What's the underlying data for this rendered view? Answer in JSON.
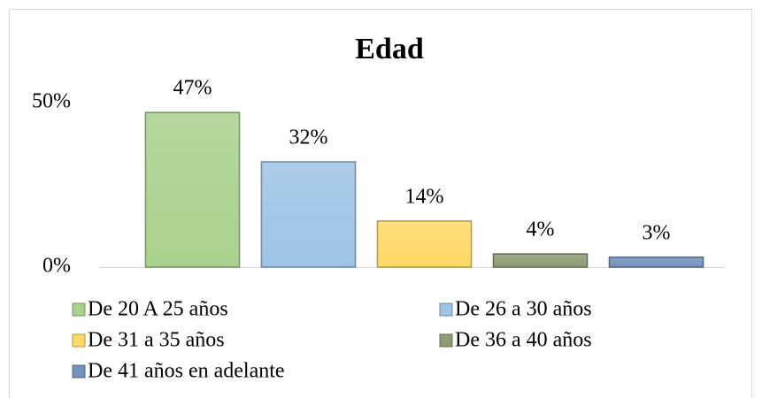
{
  "chart_data": {
    "type": "bar",
    "title": "Edad",
    "series": [
      {
        "name": "De 20 A 25 años",
        "color": "#a9d18e",
        "values": [
          47
        ],
        "value_labels": [
          "47%"
        ]
      },
      {
        "name": "De 26 a 30 años",
        "color": "#9dc3e6",
        "values": [
          32
        ],
        "value_labels": [
          "32%"
        ]
      },
      {
        "name": "De 31 a 35 años",
        "color": "#ffd966",
        "values": [
          14
        ],
        "value_labels": [
          "14%"
        ]
      },
      {
        "name": "De 36 a 40 años",
        "color": "#8c9c73",
        "values": [
          4
        ],
        "value_labels": [
          "4%"
        ]
      },
      {
        "name": "De 41 años en adelante",
        "color": "#7391bb",
        "values": [
          3
        ],
        "value_labels": [
          "3%"
        ]
      }
    ],
    "ylim": [
      0,
      50
    ],
    "yticks": [
      {
        "value": 0,
        "label": "0%"
      },
      {
        "value": 50,
        "label": "50%"
      }
    ],
    "grid": false,
    "legend": "bottom"
  }
}
